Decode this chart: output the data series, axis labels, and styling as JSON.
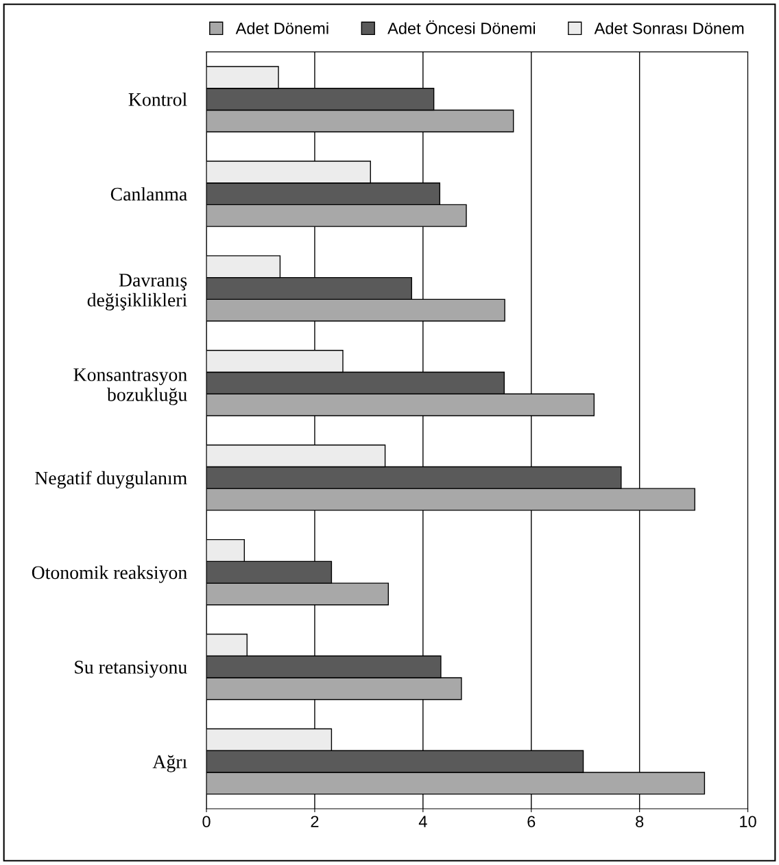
{
  "chart_data": {
    "type": "bar",
    "orientation": "horizontal",
    "categories": [
      "Kontrol",
      "Canlanma",
      "Davranış\ndeğişiklikleri",
      "Konsantrasyon\nbozukluğu",
      "Negatif duygulanım",
      "Otonomik reaksiyon",
      "Su retansiyonu",
      "Ağrı"
    ],
    "series": [
      {
        "name": "Adet Dönemi",
        "color": "#a8a8a8",
        "values": [
          5.67,
          4.8,
          5.51,
          7.16,
          9.02,
          3.36,
          4.71,
          9.2
        ]
      },
      {
        "name": "Adet Öncesi Dönemi",
        "color": "#5a5a5a",
        "values": [
          4.2,
          4.31,
          3.79,
          5.5,
          7.66,
          2.31,
          4.33,
          6.96
        ]
      },
      {
        "name": "Adet Sonrası Dönem",
        "color": "#ececec",
        "values": [
          1.33,
          3.03,
          1.36,
          2.52,
          3.3,
          0.7,
          0.75,
          2.31
        ]
      }
    ],
    "xlim": [
      0,
      10
    ],
    "xticks": [
      0,
      2,
      4,
      6,
      8,
      10
    ],
    "grid": "x",
    "legend": "top"
  }
}
